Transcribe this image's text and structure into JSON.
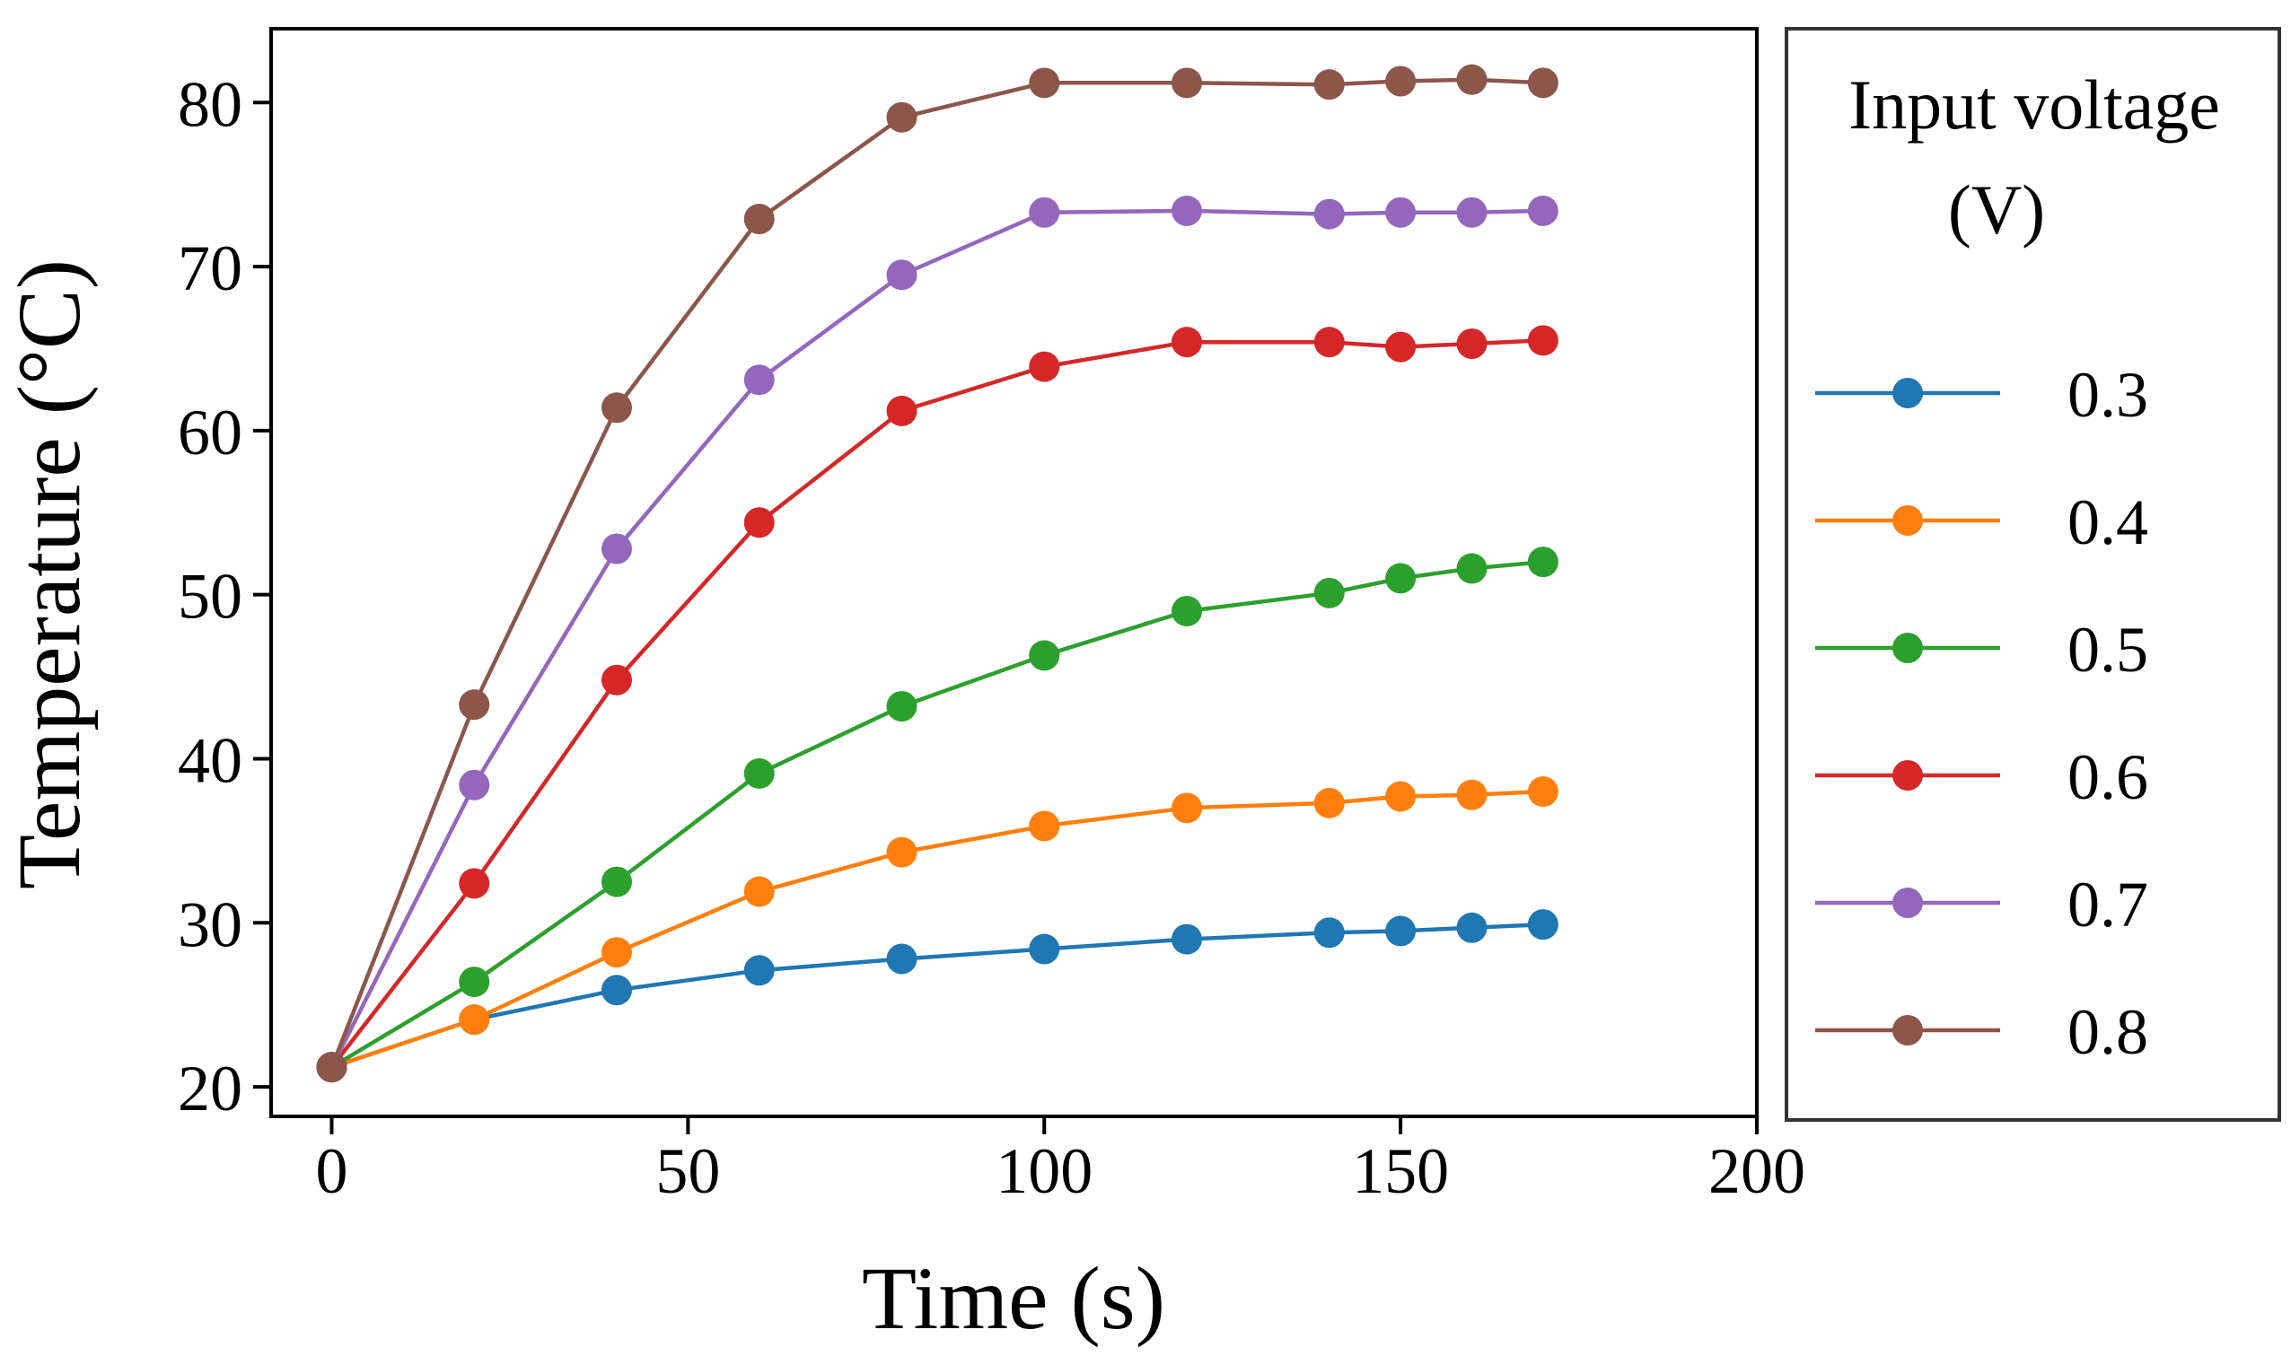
{
  "chart_data": {
    "type": "line",
    "title": "",
    "xlabel": "Time (s)",
    "ylabel": "Temperature (°C)",
    "xlim": [
      -8.5,
      200
    ],
    "ylim": [
      18.2,
      84.5
    ],
    "xticks": [
      0,
      50,
      100,
      150,
      200
    ],
    "yticks": [
      20,
      30,
      40,
      50,
      60,
      70,
      80
    ],
    "grid": false,
    "legend": {
      "title_line1": "Input voltage",
      "title_line2": "(V)",
      "placement": "outside-right"
    },
    "x": [
      0,
      20,
      40,
      60,
      80,
      100,
      120,
      140,
      150,
      160,
      170
    ],
    "series": [
      {
        "name": "0.3",
        "color": "#1f77b4",
        "values": [
          21.2,
          24.1,
          25.9,
          27.1,
          27.8,
          28.4,
          29.0,
          29.4,
          29.5,
          29.7,
          29.9
        ]
      },
      {
        "name": "0.4",
        "color": "#ff7f0e",
        "values": [
          21.2,
          24.1,
          28.2,
          31.9,
          34.3,
          35.9,
          37.0,
          37.3,
          37.7,
          37.8,
          38.0
        ]
      },
      {
        "name": "0.5",
        "color": "#2ca02c",
        "values": [
          21.2,
          26.4,
          32.5,
          39.1,
          43.2,
          46.3,
          49.0,
          50.1,
          51.0,
          51.6,
          52.0
        ]
      },
      {
        "name": "0.6",
        "color": "#d62728",
        "values": [
          21.2,
          32.4,
          44.8,
          54.4,
          61.2,
          63.9,
          65.4,
          65.4,
          65.1,
          65.3,
          65.5
        ]
      },
      {
        "name": "0.7",
        "color": "#9467bd",
        "values": [
          21.2,
          38.4,
          52.8,
          63.1,
          69.5,
          73.3,
          73.4,
          73.2,
          73.3,
          73.3,
          73.4
        ]
      },
      {
        "name": "0.8",
        "color": "#8c564b",
        "values": [
          21.2,
          43.3,
          61.4,
          72.9,
          79.1,
          81.2,
          81.2,
          81.1,
          81.3,
          81.4,
          81.2
        ]
      }
    ]
  }
}
